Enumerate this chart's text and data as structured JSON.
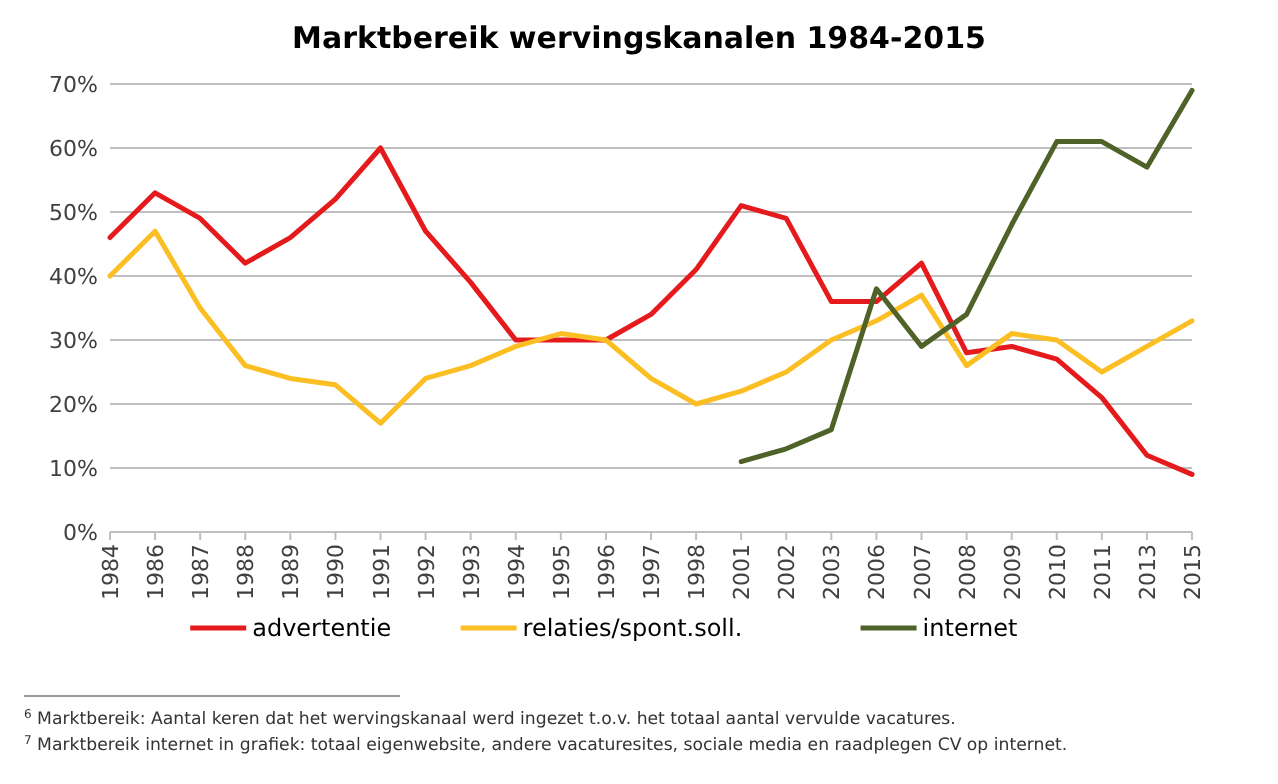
{
  "chart_data": {
    "type": "line",
    "title": "Marktbereik wervingskanalen 1984-2015",
    "categories": [
      "1984",
      "1986",
      "1987",
      "1988",
      "1989",
      "1990",
      "1991",
      "1992",
      "1993",
      "1994",
      "1995",
      "1996",
      "1997",
      "1998",
      "2001",
      "2002",
      "2003",
      "2006",
      "2007",
      "2008",
      "2009",
      "2010",
      "2011",
      "2013",
      "2015"
    ],
    "series": [
      {
        "name": "advertentie",
        "color": "#e41a1c",
        "values": [
          46,
          53,
          49,
          42,
          46,
          52,
          60,
          47,
          39,
          30,
          30,
          30,
          34,
          41,
          51,
          49,
          36,
          36,
          42,
          28,
          29,
          27,
          21,
          12,
          9
        ]
      },
      {
        "name": "relaties/spont.soll.",
        "color": "#fbbf24",
        "values": [
          40,
          47,
          35,
          26,
          24,
          23,
          17,
          24,
          26,
          29,
          31,
          30,
          24,
          20,
          22,
          25,
          30,
          33,
          37,
          26,
          31,
          30,
          25,
          29,
          33
        ]
      },
      {
        "name": "internet",
        "color": "#4f6228",
        "values": [
          null,
          null,
          null,
          null,
          null,
          null,
          null,
          null,
          null,
          null,
          null,
          null,
          null,
          null,
          11,
          13,
          16,
          38,
          29,
          34,
          48,
          61,
          61,
          57,
          69
        ]
      }
    ],
    "ylim": [
      0,
      70
    ],
    "yticks": [
      {
        "value": 0,
        "label": "0%"
      },
      {
        "value": 10,
        "label": "10%"
      },
      {
        "value": 20,
        "label": "20%"
      },
      {
        "value": 30,
        "label": "30%"
      },
      {
        "value": 40,
        "label": "40%"
      },
      {
        "value": 50,
        "label": "50%"
      },
      {
        "value": 60,
        "label": "60%"
      },
      {
        "value": 70,
        "label": "70%"
      }
    ],
    "grid": "y",
    "legend": "bottom",
    "marker": "none",
    "line_style": "solid",
    "annotations": [
      "$^{6}$ Marktbereik: Aantal keren dat het wervingskanaal werd ingezet t.o.v. het totaal aantal vervulde vacatures.",
      "$^{7}$ Marktbereik internet in grafiek: totaal eigenwebsite, andere vacaturesites, sociale media en raadplegen CV op internet."
    ]
  }
}
